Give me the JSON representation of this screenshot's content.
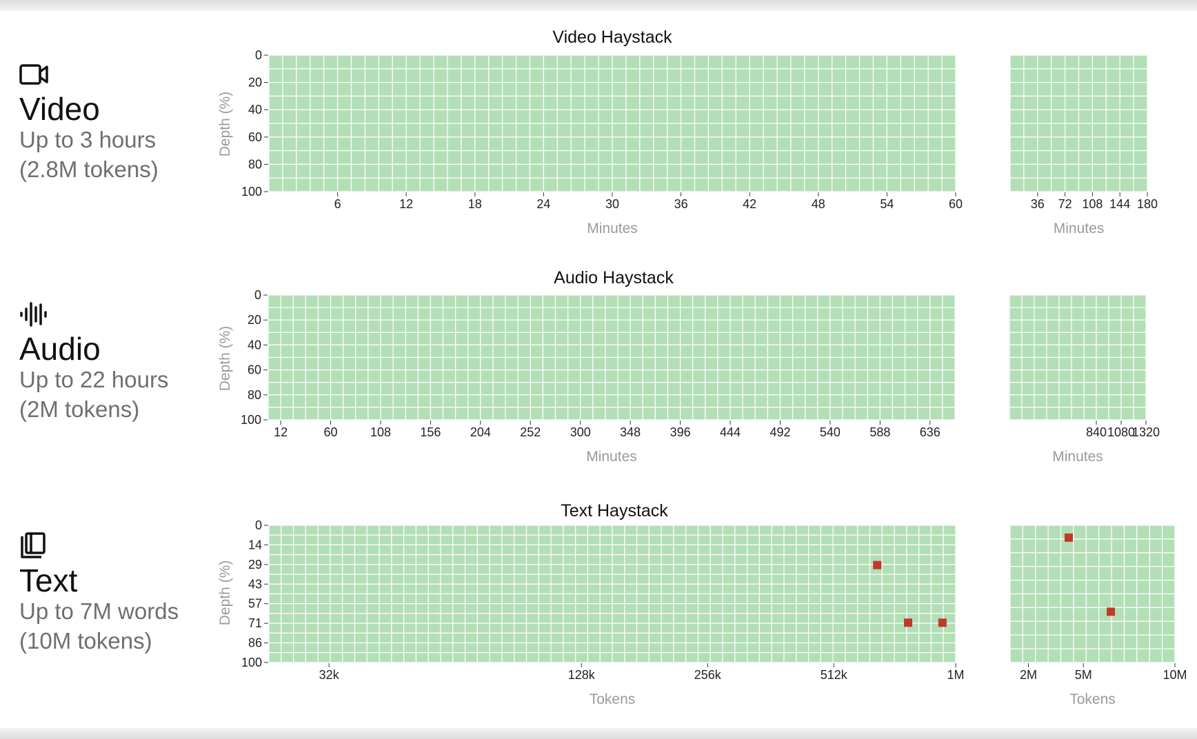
{
  "rows": [
    {
      "icon": "video-camera-icon",
      "name": "Video",
      "sub1": "Up to 3 hours",
      "sub2": "(2.8M tokens)"
    },
    {
      "icon": "audio-waveform-icon",
      "name": "Audio",
      "sub1": "Up to 22 hours",
      "sub2": "(2M tokens)"
    },
    {
      "icon": "book-pages-icon",
      "name": "Text",
      "sub1": "Up to 7M words",
      "sub2": "(10M tokens)"
    }
  ],
  "colors": {
    "pass": "#b3dfb6",
    "fail": "#c0392b",
    "grid": "#ffffff"
  },
  "chart_data": [
    {
      "type": "heatmap",
      "title": "Video Haystack",
      "ylabel": "Depth (%)",
      "yticks": [
        "0",
        "20",
        "40",
        "60",
        "80",
        "100"
      ],
      "panels": [
        {
          "xlabel": "Minutes",
          "xticks": [
            "6",
            "12",
            "18",
            "24",
            "30",
            "36",
            "42",
            "48",
            "54",
            "60"
          ],
          "xrange": [
            0,
            60
          ],
          "columns": 50,
          "rows": 10,
          "failures": []
        },
        {
          "xlabel": "Minutes",
          "xticks": [
            "36",
            "72",
            "108",
            "144",
            "180"
          ],
          "xrange": [
            0,
            180
          ],
          "columns": 10,
          "rows": 10,
          "failures": []
        }
      ]
    },
    {
      "type": "heatmap",
      "title": "Audio Haystack",
      "ylabel": "Depth (%)",
      "yticks": [
        "0",
        "20",
        "40",
        "60",
        "80",
        "100"
      ],
      "panels": [
        {
          "xlabel": "Minutes",
          "xticks": [
            "12",
            "60",
            "108",
            "156",
            "204",
            "252",
            "300",
            "348",
            "396",
            "444",
            "492",
            "540",
            "588",
            "636"
          ],
          "xrange": [
            0,
            660
          ],
          "columns": 55,
          "rows": 10,
          "failures": []
        },
        {
          "xlabel": "Minutes",
          "xticks": [
            "840",
            "1080",
            "1320"
          ],
          "xrange": [
            0,
            1320
          ],
          "columns": 11,
          "rows": 10,
          "failures": []
        }
      ]
    },
    {
      "type": "heatmap",
      "title": "Text Haystack",
      "ylabel": "Depth (%)",
      "yticks": [
        "0",
        "14",
        "29",
        "43",
        "57",
        "71",
        "86",
        "100"
      ],
      "panels": [
        {
          "xlabel": "Tokens",
          "xticks": [
            {
              "label": "32k",
              "v": 32000
            },
            {
              "label": "128k",
              "v": 128000
            },
            {
              "label": "256k",
              "v": 256000
            },
            {
              "label": "512k",
              "v": 512000
            },
            {
              "label": "1M",
              "v": 1000000
            }
          ],
          "scale": "log",
          "xrange": [
            23000,
            1000000
          ],
          "columns": 56,
          "rows": 14,
          "failures": [
            {
              "tokens": 650000,
              "depth": 29
            },
            {
              "tokens": 770000,
              "depth": 71
            },
            {
              "tokens": 930000,
              "depth": 71
            }
          ]
        },
        {
          "xlabel": "Tokens",
          "xticks": [
            {
              "label": "2M",
              "v": 2000000
            },
            {
              "label": "5M",
              "v": 5000000
            },
            {
              "label": "10M",
              "v": 10000000
            }
          ],
          "scale": "linear",
          "xrange": [
            1000000,
            10000000
          ],
          "columns": 13,
          "rows": 10,
          "failures": [
            {
              "tokens": 4200000,
              "depth": 9
            },
            {
              "tokens": 6500000,
              "depth": 63
            }
          ]
        }
      ]
    }
  ]
}
